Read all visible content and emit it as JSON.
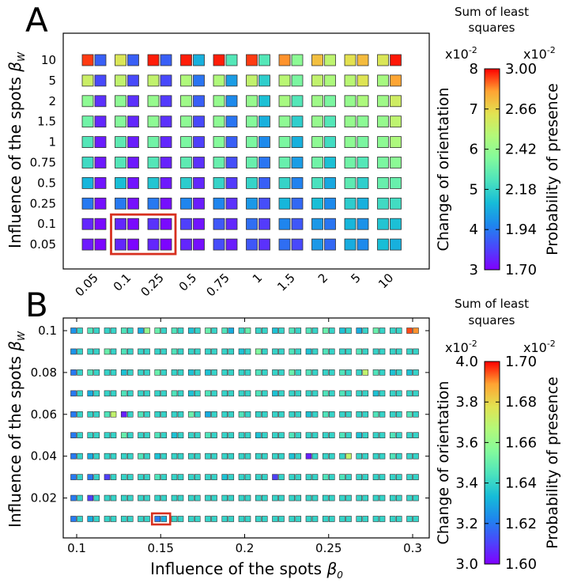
{
  "chart_data": [
    {
      "panel": "A",
      "type": "heatmap",
      "xlabel": "",
      "ylabel": "Influence of the spots βW",
      "ylabel_text": "Influence of the spots ",
      "ylabel_symbol": "β",
      "ylabel_sub": "W",
      "x_categories": [
        "0.05",
        "0.1",
        "0.25",
        "0.5",
        "0.75",
        "1",
        "1.5",
        "2",
        "5",
        "10"
      ],
      "y_categories": [
        "10",
        "5",
        "2",
        "1.5",
        "1",
        "0.75",
        "0.5",
        "0.25",
        "0.1",
        "0.05"
      ],
      "cell_metrics": [
        "Change of orientation (left square)",
        "Probability of presence (right square)"
      ],
      "orientation_x1e2": [
        [
          7.8,
          6.8,
          7.9,
          7.9,
          7.9,
          7.8,
          7.5,
          7.2,
          6.9,
          6.8
        ],
        [
          6.6,
          6.5,
          6.5,
          6.3,
          6.3,
          6.5,
          6.4,
          6.5,
          6.4,
          6.2
        ],
        [
          5.9,
          5.9,
          6.0,
          6.1,
          6.0,
          6.0,
          6.2,
          6.1,
          6.0,
          6.1
        ],
        [
          5.6,
          5.8,
          5.9,
          5.9,
          5.9,
          5.8,
          5.9,
          6.0,
          6.0,
          6.0
        ],
        [
          5.3,
          5.4,
          5.6,
          5.7,
          5.8,
          5.7,
          5.7,
          5.9,
          5.9,
          5.9
        ],
        [
          5.1,
          5.3,
          5.3,
          5.4,
          5.5,
          5.5,
          5.5,
          5.6,
          5.6,
          5.7
        ],
        [
          4.6,
          4.7,
          4.8,
          4.9,
          5.0,
          5.0,
          5.0,
          5.2,
          5.4,
          5.5
        ],
        [
          4.0,
          4.0,
          4.0,
          4.1,
          4.1,
          4.3,
          4.6,
          4.7,
          4.9,
          5.1
        ],
        [
          3.3,
          3.3,
          3.4,
          3.5,
          3.7,
          3.9,
          4.1,
          4.3,
          4.6,
          4.8
        ],
        [
          3.2,
          3.3,
          3.3,
          3.3,
          3.6,
          3.7,
          3.9,
          4.3,
          4.5,
          4.7
        ]
      ],
      "presence_x1e2": [
        [
          1.9,
          1.9,
          1.9,
          2.1,
          2.3,
          2.3,
          2.45,
          2.6,
          2.8,
          2.98
        ],
        [
          1.85,
          1.85,
          1.85,
          1.95,
          2.05,
          2.2,
          2.4,
          2.55,
          2.7,
          2.85
        ],
        [
          1.8,
          1.8,
          1.82,
          1.9,
          2.0,
          2.15,
          2.3,
          2.4,
          2.55,
          2.65
        ],
        [
          1.78,
          1.78,
          1.8,
          1.85,
          1.95,
          2.1,
          2.2,
          2.3,
          2.45,
          2.6
        ],
        [
          1.76,
          1.76,
          1.78,
          1.83,
          1.9,
          2.0,
          2.1,
          2.25,
          2.4,
          2.55
        ],
        [
          1.75,
          1.75,
          1.77,
          1.8,
          1.86,
          1.95,
          2.05,
          2.15,
          2.3,
          2.45
        ],
        [
          1.74,
          1.74,
          1.75,
          1.78,
          1.82,
          1.9,
          1.98,
          2.08,
          2.2,
          2.35
        ],
        [
          1.73,
          1.73,
          1.73,
          1.76,
          1.8,
          1.86,
          1.92,
          2.0,
          2.1,
          2.25
        ],
        [
          1.72,
          1.72,
          1.72,
          1.74,
          1.78,
          1.82,
          1.88,
          1.95,
          2.02,
          2.15
        ],
        [
          1.71,
          1.71,
          1.71,
          1.73,
          1.76,
          1.8,
          1.85,
          1.92,
          2.0,
          2.1
        ]
      ],
      "highlight": {
        "x_from": "0.1",
        "x_to": "0.25",
        "y_from": "0.1",
        "y_to": "0.05",
        "color": "#d7301f"
      },
      "colorbar": {
        "title": "Sum of least squares",
        "title_lines": [
          "Sum of least",
          "squares"
        ],
        "left_multiplier": "x10",
        "right_multiplier": "x10",
        "exponent": "-2",
        "left_ticks": [
          "8",
          "7",
          "6",
          "5",
          "4",
          "3"
        ],
        "right_ticks": [
          "3.00",
          "2.66",
          "2.42",
          "2.18",
          "1.94",
          "1.70"
        ],
        "left_range": [
          3,
          8
        ],
        "right_range": [
          1.7,
          3.0
        ],
        "left_label": "Change of orientation",
        "right_label": "Probability of presence"
      }
    },
    {
      "panel": "B",
      "type": "heatmap",
      "xlabel": "Influence of the spots β0",
      "xlabel_text": "Influence of the spots ",
      "xlabel_symbol": "β",
      "xlabel_sub": "0",
      "ylabel": "Influence of the spots βW",
      "ylabel_text": "Influence of the spots ",
      "ylabel_symbol": "β",
      "ylabel_sub": "W",
      "x_range": [
        0.1,
        0.3
      ],
      "y_range": [
        0.01,
        0.1
      ],
      "x_step": 0.01,
      "y_step": 0.01,
      "x_ticks": [
        "0.1",
        "0.15",
        "0.2",
        "0.25",
        "0.3"
      ],
      "x_tick_values": [
        0.1,
        0.15,
        0.2,
        0.25,
        0.3
      ],
      "y_ticks": [
        "0.1",
        "0.08",
        "0.06",
        "0.04",
        "0.02"
      ],
      "y_tick_values": [
        0.1,
        0.08,
        0.06,
        0.04,
        0.02
      ],
      "cell_metrics": [
        "Change of orientation (left square)",
        "Probability of presence (right square)"
      ],
      "orientation_x1e2": [
        [
          3.25,
          3.45,
          3.4,
          3.45,
          3.3,
          3.5,
          3.45,
          3.35,
          3.5,
          3.45,
          3.4,
          3.4,
          3.35,
          3.45,
          3.45,
          3.5,
          3.35,
          3.3,
          3.5,
          3.4,
          3.95
        ],
        [
          3.25,
          3.4,
          3.5,
          3.45,
          3.4,
          3.4,
          3.45,
          3.4,
          3.4,
          3.4,
          3.35,
          3.55,
          3.4,
          3.45,
          3.35,
          3.45,
          3.4,
          3.45,
          3.4,
          3.4,
          3.4
        ],
        [
          3.2,
          3.45,
          3.4,
          3.35,
          3.4,
          3.5,
          3.4,
          3.35,
          3.35,
          3.4,
          3.4,
          3.45,
          3.4,
          3.5,
          3.45,
          3.4,
          3.45,
          3.4,
          3.45,
          3.35,
          3.35
        ],
        [
          3.2,
          3.3,
          3.4,
          3.45,
          3.4,
          3.4,
          3.45,
          3.35,
          3.45,
          3.4,
          3.4,
          3.45,
          3.35,
          3.4,
          3.4,
          3.45,
          3.45,
          3.4,
          3.35,
          3.4,
          3.4
        ],
        [
          3.2,
          3.4,
          3.45,
          3.05,
          3.45,
          3.4,
          3.4,
          3.5,
          3.3,
          3.4,
          3.45,
          3.4,
          3.4,
          3.4,
          3.35,
          3.45,
          3.4,
          3.4,
          3.45,
          3.4,
          3.45
        ],
        [
          3.2,
          3.4,
          3.4,
          3.5,
          3.4,
          3.45,
          3.35,
          3.4,
          3.45,
          3.4,
          3.4,
          3.35,
          3.4,
          3.45,
          3.4,
          3.4,
          3.45,
          3.35,
          3.4,
          3.45,
          3.4
        ],
        [
          3.2,
          3.3,
          3.4,
          3.4,
          3.45,
          3.35,
          3.4,
          3.4,
          3.4,
          3.4,
          3.4,
          3.4,
          3.4,
          3.35,
          3.05,
          3.4,
          3.4,
          3.4,
          3.4,
          3.45,
          3.4
        ],
        [
          3.2,
          3.2,
          3.1,
          3.4,
          3.4,
          3.45,
          3.4,
          3.4,
          3.4,
          3.35,
          3.4,
          3.4,
          3.1,
          3.4,
          3.4,
          3.45,
          3.45,
          3.4,
          3.4,
          3.4,
          3.4
        ],
        [
          3.2,
          3.1,
          3.4,
          3.4,
          3.4,
          3.4,
          3.4,
          3.4,
          3.4,
          3.4,
          3.4,
          3.4,
          3.4,
          3.4,
          3.4,
          3.4,
          3.4,
          3.4,
          3.4,
          3.4,
          3.4
        ],
        [
          3.2,
          3.3,
          3.4,
          3.4,
          3.4,
          3.2,
          3.4,
          3.4,
          3.4,
          3.4,
          3.4,
          3.4,
          3.4,
          3.4,
          3.4,
          3.4,
          3.4,
          3.4,
          3.4,
          3.4,
          3.4
        ]
      ],
      "presence_x1e2": [
        [
          1.64,
          1.64,
          1.64,
          1.64,
          1.66,
          1.64,
          1.64,
          1.64,
          1.64,
          1.63,
          1.65,
          1.64,
          1.64,
          1.64,
          1.64,
          1.64,
          1.64,
          1.64,
          1.64,
          1.64,
          1.69
        ],
        [
          1.64,
          1.64,
          1.64,
          1.64,
          1.64,
          1.64,
          1.64,
          1.64,
          1.64,
          1.64,
          1.64,
          1.64,
          1.64,
          1.64,
          1.64,
          1.64,
          1.64,
          1.64,
          1.64,
          1.64,
          1.64
        ],
        [
          1.64,
          1.64,
          1.64,
          1.64,
          1.64,
          1.64,
          1.64,
          1.64,
          1.64,
          1.64,
          1.64,
          1.64,
          1.64,
          1.64,
          1.64,
          1.64,
          1.64,
          1.67,
          1.64,
          1.64,
          1.64
        ],
        [
          1.64,
          1.64,
          1.64,
          1.64,
          1.64,
          1.64,
          1.64,
          1.64,
          1.64,
          1.64,
          1.64,
          1.64,
          1.64,
          1.64,
          1.64,
          1.64,
          1.64,
          1.64,
          1.64,
          1.64,
          1.64
        ],
        [
          1.64,
          1.64,
          1.67,
          1.64,
          1.64,
          1.64,
          1.64,
          1.64,
          1.64,
          1.64,
          1.64,
          1.64,
          1.64,
          1.64,
          1.64,
          1.64,
          1.64,
          1.64,
          1.64,
          1.64,
          1.64
        ],
        [
          1.64,
          1.64,
          1.64,
          1.64,
          1.64,
          1.64,
          1.64,
          1.64,
          1.64,
          1.64,
          1.64,
          1.64,
          1.64,
          1.64,
          1.64,
          1.64,
          1.64,
          1.64,
          1.64,
          1.64,
          1.64
        ],
        [
          1.64,
          1.64,
          1.64,
          1.64,
          1.64,
          1.64,
          1.64,
          1.64,
          1.64,
          1.64,
          1.64,
          1.64,
          1.64,
          1.64,
          1.64,
          1.64,
          1.67,
          1.64,
          1.64,
          1.64,
          1.64
        ],
        [
          1.64,
          1.64,
          1.64,
          1.64,
          1.64,
          1.64,
          1.64,
          1.64,
          1.64,
          1.64,
          1.64,
          1.64,
          1.64,
          1.64,
          1.64,
          1.64,
          1.64,
          1.64,
          1.64,
          1.64,
          1.64
        ],
        [
          1.64,
          1.64,
          1.64,
          1.64,
          1.64,
          1.64,
          1.64,
          1.64,
          1.64,
          1.64,
          1.64,
          1.64,
          1.64,
          1.64,
          1.64,
          1.64,
          1.64,
          1.64,
          1.64,
          1.64,
          1.64
        ],
        [
          1.64,
          1.64,
          1.64,
          1.64,
          1.64,
          1.63,
          1.64,
          1.64,
          1.64,
          1.64,
          1.64,
          1.64,
          1.64,
          1.64,
          1.64,
          1.64,
          1.64,
          1.64,
          1.64,
          1.64,
          1.64
        ]
      ],
      "highlight": {
        "x": 0.15,
        "y": 0.01,
        "color": "#d7301f"
      },
      "colorbar": {
        "title": "Sum of least squares",
        "title_lines": [
          "Sum of least",
          "squares"
        ],
        "left_multiplier": "x10",
        "right_multiplier": "x10",
        "exponent": "-2",
        "left_ticks": [
          "4.0",
          "3.8",
          "3.6",
          "3.4",
          "3.2",
          "3.0"
        ],
        "right_ticks": [
          "1.70",
          "1.68",
          "1.66",
          "1.64",
          "1.62",
          "1.60"
        ],
        "left_range": [
          3.0,
          4.0
        ],
        "right_range": [
          1.6,
          1.7
        ],
        "left_label": "Change of orientation",
        "right_label": "Probability of presence"
      }
    }
  ]
}
